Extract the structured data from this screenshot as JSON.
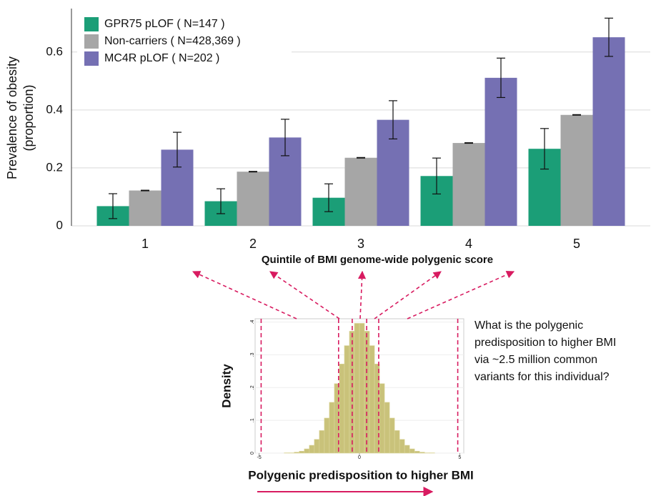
{
  "chart_data": [
    {
      "type": "bar",
      "ylabel": [
        "Prevalence of obesity",
        "(proportion)"
      ],
      "xlabel": "Quintile of BMI genome-wide polygenic score",
      "categories": [
        "1",
        "2",
        "3",
        "4",
        "5"
      ],
      "series": [
        {
          "name": "GPR75 pLOF ( N=147 )",
          "color": "#1b9e77",
          "values": [
            0.068,
            0.085,
            0.097,
            0.172,
            0.266
          ],
          "errors": [
            0.043,
            0.043,
            0.048,
            0.062,
            0.07
          ]
        },
        {
          "name": "Non-carriers ( N=428,369 )",
          "color": "#a6a6a6",
          "values": [
            0.122,
            0.187,
            0.235,
            0.286,
            0.383
          ],
          "errors": [
            0.001,
            0.001,
            0.001,
            0.001,
            0.001
          ]
        },
        {
          "name": "MC4R pLOF ( N=202 )",
          "color": "#7570b3",
          "values": [
            0.263,
            0.305,
            0.366,
            0.511,
            0.651
          ],
          "errors": [
            0.06,
            0.063,
            0.066,
            0.068,
            0.066
          ]
        }
      ],
      "ylim": [
        0,
        0.75
      ],
      "yticks": [
        0,
        0.2,
        0.4,
        0.6
      ],
      "grid": true,
      "legend": "top-left"
    },
    {
      "type": "histogram",
      "ylabel": "Density",
      "xlabel": "Polygenic predisposition to higher BMI",
      "annotation": [
        "What is the polygenic",
        "predisposition to higher BMI",
        "via ~2.5 million common",
        "variants for this individual?"
      ],
      "bins": [
        -4,
        -3.75,
        -3.5,
        -3.25,
        -3,
        -2.75,
        -2.5,
        -2.25,
        -2,
        -1.75,
        -1.5,
        -1.25,
        -1,
        -0.75,
        -0.5,
        -0.25,
        0,
        0.25,
        0.5,
        0.75,
        1,
        1.25,
        1.5,
        1.75,
        2,
        2.25,
        2.5,
        2.75,
        3,
        3.25,
        3.5,
        3.75,
        4
      ],
      "values": [
        0.0,
        0.001,
        0.001,
        0.003,
        0.006,
        0.013,
        0.024,
        0.042,
        0.069,
        0.107,
        0.155,
        0.212,
        0.272,
        0.328,
        0.372,
        0.396,
        0.396,
        0.372,
        0.328,
        0.272,
        0.212,
        0.155,
        0.107,
        0.069,
        0.042,
        0.024,
        0.013,
        0.006,
        0.003,
        0.001,
        0.001,
        0.0
      ],
      "color": "#c9c27a",
      "vlines": [
        -4.9,
        -1.04,
        -0.36,
        0.36,
        0.96,
        4.9
      ],
      "xlim": [
        -5.2,
        5.2
      ],
      "xticks": [
        -5,
        0,
        5
      ],
      "ylim": [
        0,
        0.41
      ],
      "yticks": [
        {
          "value": 0,
          "label": "0"
        },
        {
          "value": 0.1,
          "label": ".1"
        },
        {
          "value": 0.2,
          "label": ".2"
        },
        {
          "value": 0.3,
          "label": ".3"
        },
        {
          "value": 0.4,
          "label": ".4"
        }
      ],
      "grid": true
    }
  ]
}
